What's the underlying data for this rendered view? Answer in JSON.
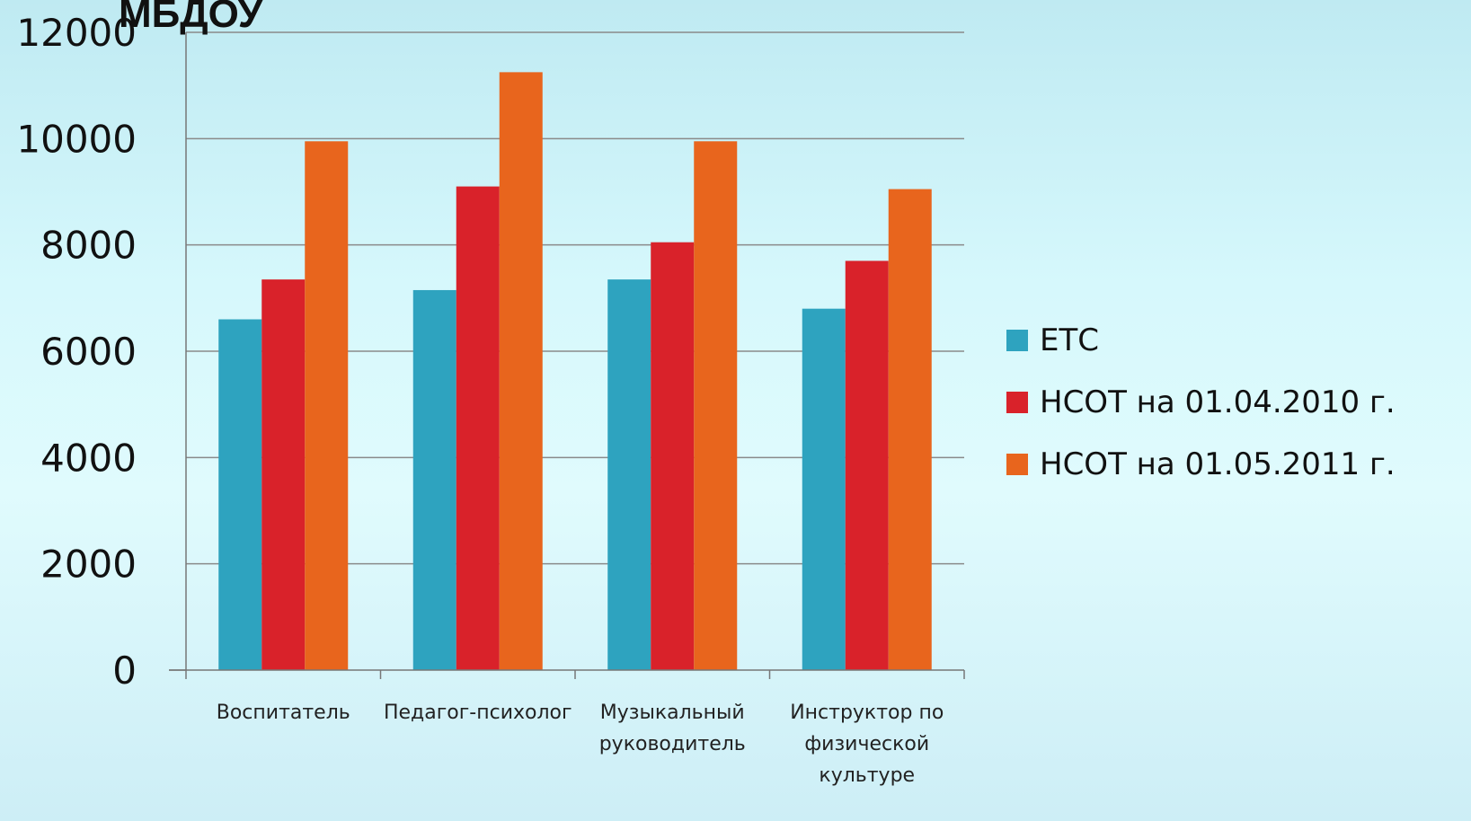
{
  "chart_data": {
    "type": "bar",
    "title": "МБДОУ",
    "categories": [
      [
        "Воспитатель"
      ],
      [
        "Педагог-психолог"
      ],
      [
        "Музыкальный",
        "руководитель"
      ],
      [
        "Инструктор по",
        "физической",
        "культуре"
      ]
    ],
    "series": [
      {
        "name": "ЕТС",
        "color": "#2ea3bf",
        "values": [
          6600,
          7150,
          7350,
          6800
        ]
      },
      {
        "name": "НСОТ на 01.04.2010  г.",
        "color": "#d9222a",
        "values": [
          7350,
          9100,
          8050,
          7700
        ]
      },
      {
        "name": "НСОТ на 01.05.2011  г.",
        "color": "#e8651d",
        "values": [
          9950,
          11250,
          9950,
          9050
        ]
      }
    ],
    "ylim": [
      0,
      12000
    ],
    "yticks": [
      "0",
      "2000",
      "4000",
      "6000",
      "8000",
      "10000",
      "12000"
    ],
    "grid": true,
    "legend": "right"
  }
}
